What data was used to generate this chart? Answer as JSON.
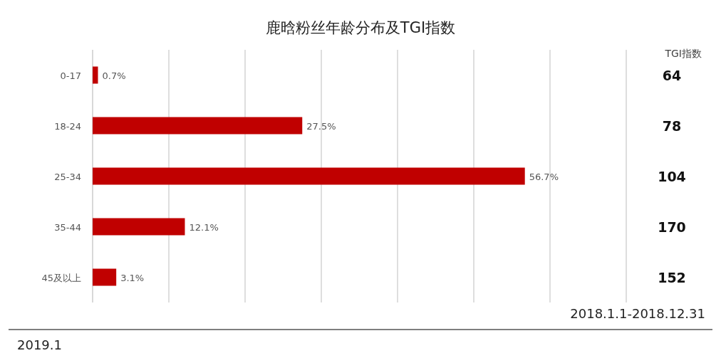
{
  "chart_data": {
    "type": "bar",
    "orientation": "horizontal",
    "title": "鹿晗粉丝年龄分布及TGI指数",
    "categories": [
      "0-17",
      "18-24",
      "25-34",
      "35-44",
      "45及以上"
    ],
    "values": [
      0.7,
      27.5,
      56.7,
      12.1,
      3.1
    ],
    "color": "#c00000",
    "value_labels": [
      "0.7%",
      "27.5%",
      "56.7%",
      "12.1%",
      "3.1%"
    ],
    "xlim": [
      0,
      70
    ],
    "xticks": [
      {
        "value": 10,
        "label": null
      },
      {
        "value": 20,
        "label": null
      },
      {
        "value": 30,
        "label": null
      },
      {
        "value": 40,
        "label": null
      },
      {
        "value": 50,
        "label": null
      },
      {
        "value": 60,
        "label": null
      },
      {
        "value": 70,
        "label": null
      }
    ],
    "grid": "x",
    "tick_labels": "y",
    "annotations": [
      "TGI指数",
      "64",
      "78",
      "104",
      "170",
      "152",
      "2018.1.1-2018.12.31",
      "2019.1"
    ]
  }
}
